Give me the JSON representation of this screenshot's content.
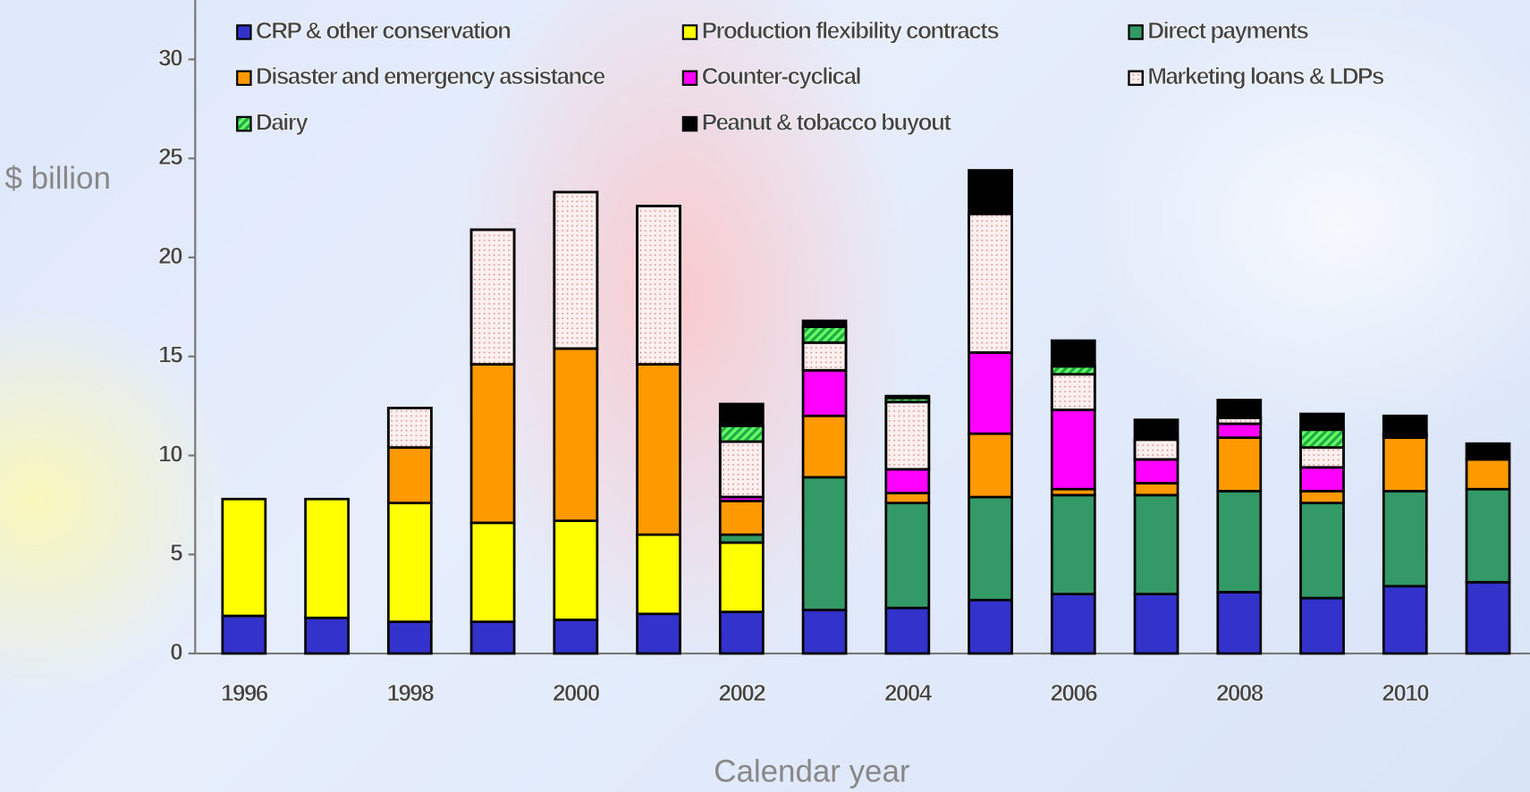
{
  "chart_data": {
    "type": "stacked_bar",
    "y_label": "$ billion",
    "x_label": "Calendar year",
    "categories": [
      "1996",
      null,
      "1998",
      null,
      "2000",
      null,
      "2002",
      null,
      "2004",
      null,
      "2006",
      null,
      "2008",
      null,
      "2010",
      null
    ],
    "series": [
      {
        "name": "CRP & other conservation",
        "color": "#3333cc",
        "values": [
          1.9,
          1.8,
          1.6,
          1.6,
          1.7,
          2.0,
          2.1,
          2.2,
          2.3,
          2.7,
          3.0,
          3.0,
          3.1,
          2.8,
          3.4,
          3.6
        ]
      },
      {
        "name": "Production flexibility contracts",
        "color": "#ffff00",
        "values": [
          5.9,
          6.0,
          6.0,
          5.0,
          5.0,
          4.0,
          3.5,
          0,
          0,
          0,
          0,
          0,
          0,
          0,
          0,
          0
        ]
      },
      {
        "name": "Direct payments",
        "color": "#339966",
        "values": [
          0,
          0,
          0,
          0,
          0,
          0,
          0.4,
          6.7,
          5.3,
          5.2,
          5.0,
          5.0,
          5.1,
          4.8,
          4.8,
          4.7
        ]
      },
      {
        "name": "Disaster and emergency assistance",
        "color": "#ff9900",
        "values": [
          0,
          0,
          2.8,
          8.0,
          8.7,
          8.6,
          1.7,
          3.1,
          0.5,
          3.2,
          0.3,
          0.6,
          2.7,
          0.6,
          2.7,
          1.5
        ]
      },
      {
        "name": "Counter-cyclical",
        "color": "#ff00ff",
        "values": [
          0,
          0,
          0,
          0,
          0,
          0,
          0.2,
          2.3,
          1.2,
          4.1,
          4.0,
          1.2,
          0.7,
          1.2,
          0.1,
          0
        ]
      },
      {
        "name": "Marketing loans & LDPs",
        "color": "#fff0f0",
        "pattern": "dots",
        "values": [
          0,
          0,
          2.0,
          6.8,
          7.9,
          8.0,
          2.8,
          1.4,
          3.4,
          7.0,
          1.8,
          1.0,
          0.3,
          1.0,
          0.1,
          0
        ]
      },
      {
        "name": "Dairy",
        "color": "#66ff66",
        "pattern": "stripes",
        "values": [
          0,
          0,
          0,
          0,
          0,
          0,
          0.8,
          0.8,
          0.2,
          0,
          0.4,
          0,
          0,
          0.9,
          0,
          0
        ]
      },
      {
        "name": "Peanut & tobacco buyout",
        "color": "#000000",
        "values": [
          0,
          0,
          0,
          0,
          0,
          0,
          1.1,
          0.3,
          0.1,
          2.2,
          1.3,
          1.0,
          0.9,
          0.8,
          0.9,
          0.8
        ]
      }
    ],
    "ylim": [
      0,
      33
    ],
    "yticks": [
      0,
      5,
      10,
      15,
      20,
      25,
      30
    ]
  }
}
